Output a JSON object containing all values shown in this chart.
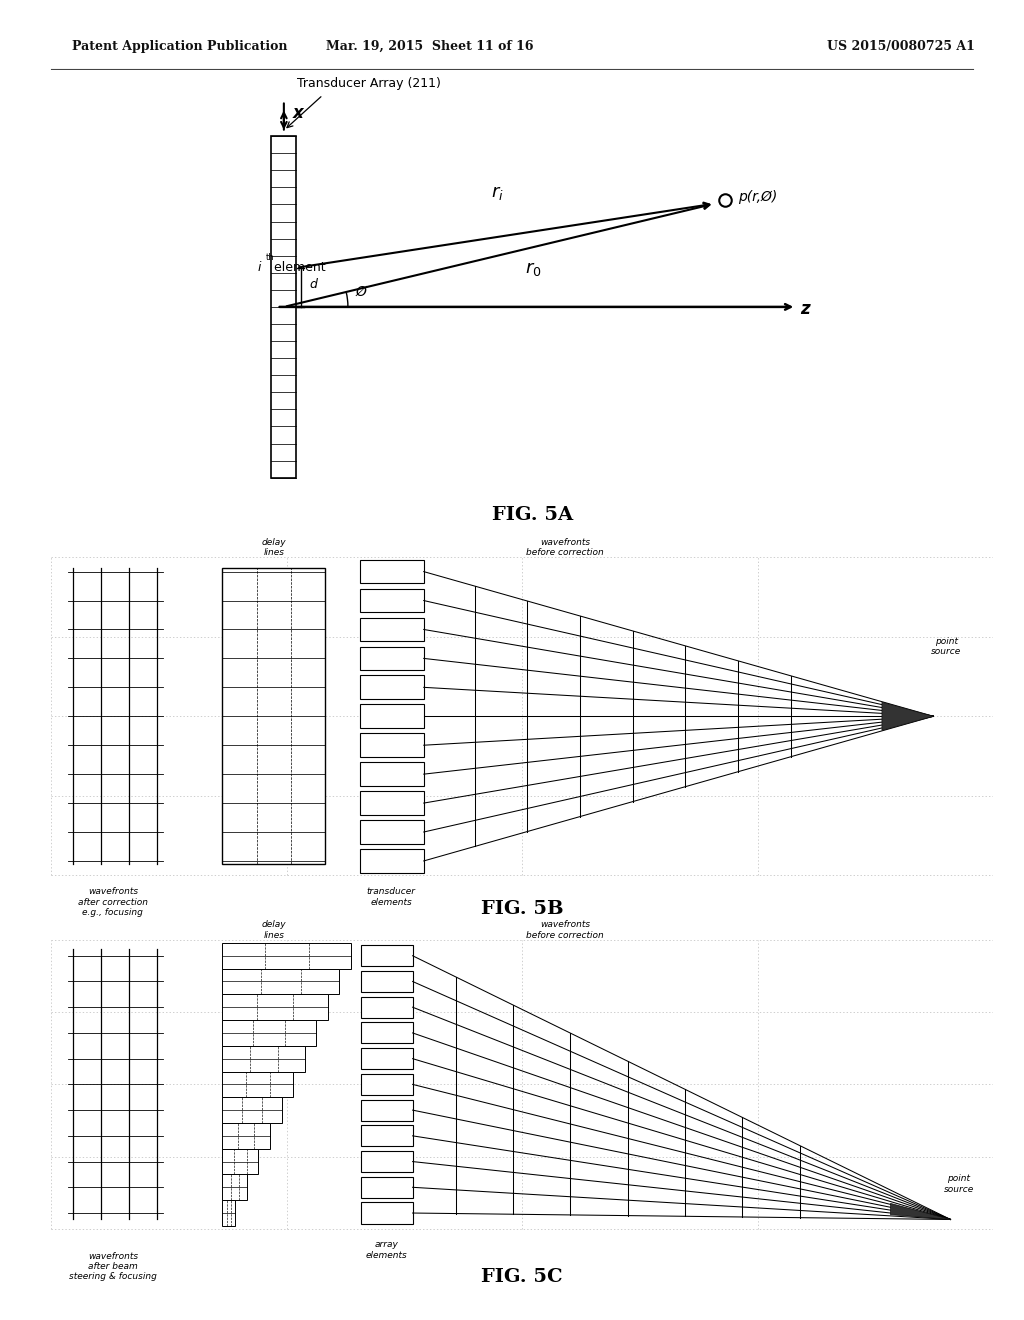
{
  "bg_color": "#ffffff",
  "header_left": "Patent Application Publication",
  "header_mid": "Mar. 19, 2015  Sheet 11 of 16",
  "header_right": "US 2015/0080725 A1",
  "fig5a_label": "FIG. 5A",
  "fig5b_label": "FIG. 5B",
  "fig5c_label": "FIG. 5C",
  "transducer_label": "Transducer Array (211)",
  "i_element_label": "i",
  "point_label": "p(r,Ø)",
  "z_label": "z",
  "x_label": "x",
  "angle_label": "Ø",
  "d_label": "d",
  "line_color": "#000000",
  "grid_color": "#bbbbbb"
}
